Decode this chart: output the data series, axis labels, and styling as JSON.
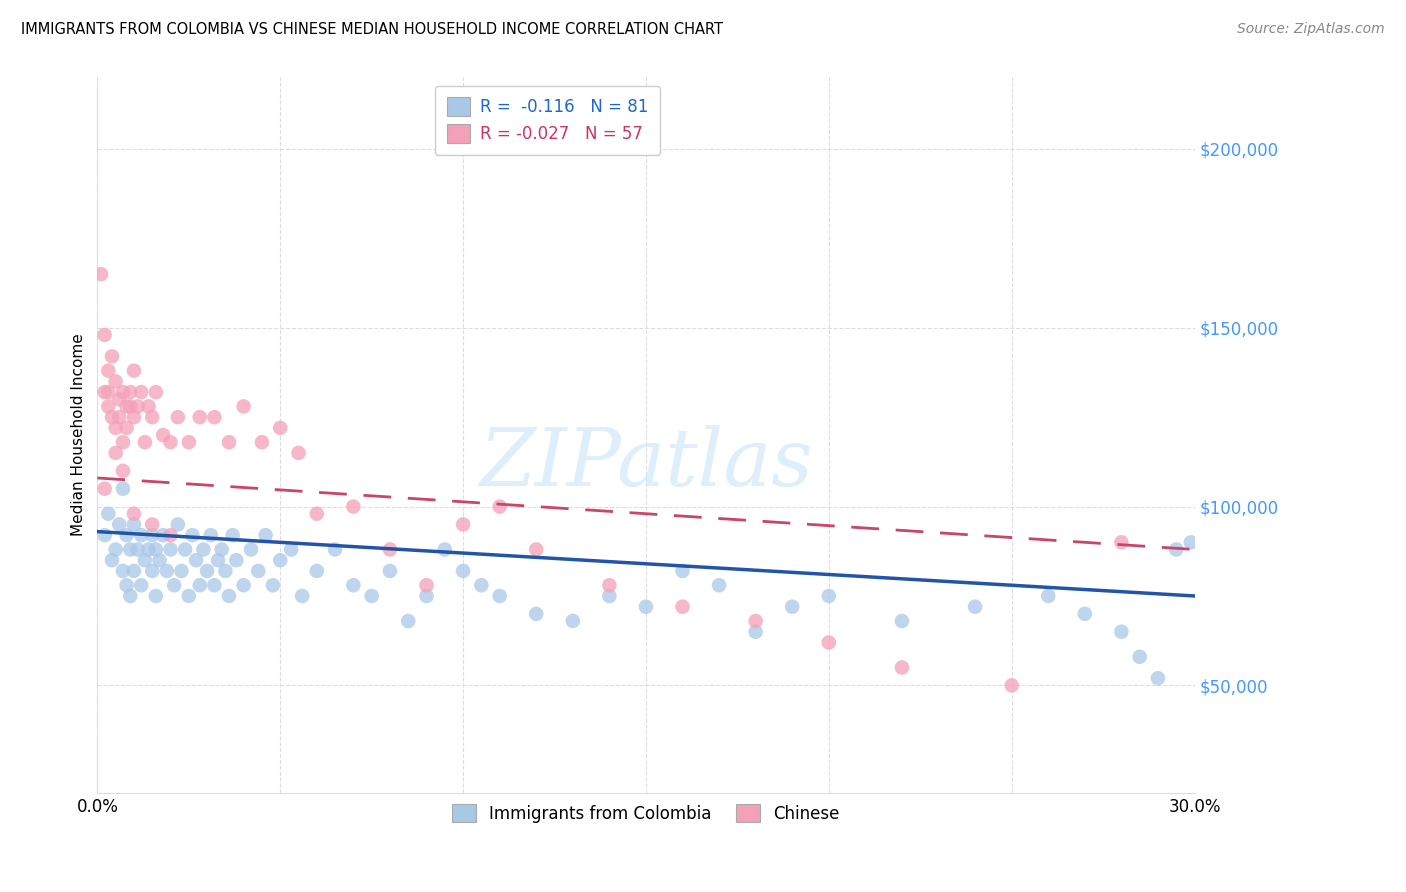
{
  "title": "IMMIGRANTS FROM COLOMBIA VS CHINESE MEDIAN HOUSEHOLD INCOME CORRELATION CHART",
  "source": "Source: ZipAtlas.com",
  "ylabel": "Median Household Income",
  "xlim": [
    0.0,
    0.3
  ],
  "ylim": [
    20000,
    220000
  ],
  "xtick_positions": [
    0.0,
    0.05,
    0.1,
    0.15,
    0.2,
    0.25,
    0.3
  ],
  "xticklabels": [
    "0.0%",
    "",
    "",
    "",
    "",
    "",
    "30.0%"
  ],
  "yticks_right": [
    50000,
    100000,
    150000,
    200000
  ],
  "ytick_labels_right": [
    "$50,000",
    "$100,000",
    "$150,000",
    "$200,000"
  ],
  "legend_R_colombia": "-0.116",
  "legend_N_colombia": "81",
  "legend_R_chinese": "-0.027",
  "legend_N_chinese": "57",
  "color_colombia": "#a8c8e8",
  "color_chinese": "#f4a0b8",
  "line_color_colombia": "#2255aa",
  "line_color_chinese": "#cc4466",
  "watermark": "ZIPatlas",
  "colombia_x": [
    0.002,
    0.003,
    0.004,
    0.005,
    0.006,
    0.007,
    0.007,
    0.008,
    0.008,
    0.009,
    0.009,
    0.01,
    0.01,
    0.011,
    0.012,
    0.012,
    0.013,
    0.014,
    0.015,
    0.015,
    0.016,
    0.016,
    0.017,
    0.018,
    0.019,
    0.02,
    0.021,
    0.022,
    0.023,
    0.024,
    0.025,
    0.026,
    0.027,
    0.028,
    0.029,
    0.03,
    0.031,
    0.032,
    0.033,
    0.034,
    0.035,
    0.036,
    0.037,
    0.038,
    0.04,
    0.042,
    0.044,
    0.046,
    0.048,
    0.05,
    0.053,
    0.056,
    0.06,
    0.065,
    0.07,
    0.075,
    0.08,
    0.085,
    0.09,
    0.095,
    0.1,
    0.105,
    0.11,
    0.12,
    0.13,
    0.14,
    0.15,
    0.16,
    0.17,
    0.18,
    0.19,
    0.2,
    0.22,
    0.24,
    0.26,
    0.27,
    0.28,
    0.285,
    0.29,
    0.295,
    0.299
  ],
  "colombia_y": [
    92000,
    98000,
    85000,
    88000,
    95000,
    82000,
    105000,
    78000,
    92000,
    88000,
    75000,
    95000,
    82000,
    88000,
    92000,
    78000,
    85000,
    88000,
    82000,
    92000,
    88000,
    75000,
    85000,
    92000,
    82000,
    88000,
    78000,
    95000,
    82000,
    88000,
    75000,
    92000,
    85000,
    78000,
    88000,
    82000,
    92000,
    78000,
    85000,
    88000,
    82000,
    75000,
    92000,
    85000,
    78000,
    88000,
    82000,
    92000,
    78000,
    85000,
    88000,
    75000,
    82000,
    88000,
    78000,
    75000,
    82000,
    68000,
    75000,
    88000,
    82000,
    78000,
    75000,
    70000,
    68000,
    75000,
    72000,
    82000,
    78000,
    65000,
    72000,
    75000,
    68000,
    72000,
    75000,
    70000,
    65000,
    58000,
    52000,
    88000,
    90000
  ],
  "chinese_x": [
    0.001,
    0.002,
    0.002,
    0.003,
    0.003,
    0.004,
    0.004,
    0.005,
    0.005,
    0.006,
    0.006,
    0.007,
    0.007,
    0.008,
    0.008,
    0.009,
    0.009,
    0.01,
    0.01,
    0.011,
    0.012,
    0.013,
    0.014,
    0.015,
    0.016,
    0.018,
    0.02,
    0.022,
    0.025,
    0.028,
    0.032,
    0.036,
    0.04,
    0.045,
    0.05,
    0.055,
    0.06,
    0.07,
    0.08,
    0.09,
    0.1,
    0.11,
    0.12,
    0.14,
    0.16,
    0.18,
    0.2,
    0.22,
    0.25,
    0.28,
    0.002,
    0.003,
    0.005,
    0.007,
    0.01,
    0.015,
    0.02
  ],
  "chinese_y": [
    165000,
    148000,
    132000,
    138000,
    128000,
    142000,
    125000,
    135000,
    122000,
    130000,
    125000,
    132000,
    118000,
    128000,
    122000,
    132000,
    128000,
    138000,
    125000,
    128000,
    132000,
    118000,
    128000,
    125000,
    132000,
    120000,
    118000,
    125000,
    118000,
    125000,
    125000,
    118000,
    128000,
    118000,
    122000,
    115000,
    98000,
    100000,
    88000,
    78000,
    95000,
    100000,
    88000,
    78000,
    72000,
    68000,
    62000,
    55000,
    50000,
    90000,
    105000,
    132000,
    115000,
    110000,
    98000,
    95000,
    92000
  ],
  "trendline_colombia": [
    0.0,
    0.3,
    93000,
    75000
  ],
  "trendline_chinese": [
    0.0,
    0.3,
    108000,
    88000
  ]
}
